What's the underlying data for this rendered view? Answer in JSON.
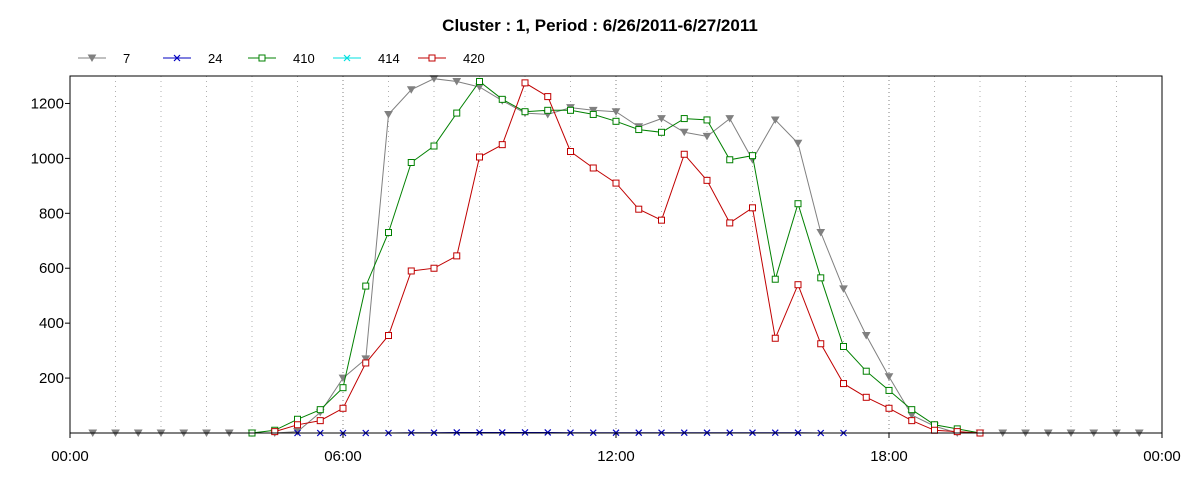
{
  "chart_data": {
    "type": "line",
    "title": "Cluster : 1, Period : 6/26/2011-6/27/2011",
    "xlabel": "",
    "ylabel": "",
    "xlim": [
      "00:00",
      "24:00"
    ],
    "ylim": [
      0,
      1300
    ],
    "x_ticks": [
      "00:00",
      "06:00",
      "12:00",
      "18:00",
      "00:00"
    ],
    "y_ticks": [
      200,
      400,
      600,
      800,
      1000,
      1200
    ],
    "grid": "vertical dotted",
    "legend_position": "top-left",
    "x": [
      "00:30",
      "01:00",
      "01:30",
      "02:00",
      "02:30",
      "03:00",
      "03:30",
      "04:00",
      "04:30",
      "05:00",
      "05:30",
      "06:00",
      "06:30",
      "07:00",
      "07:30",
      "08:00",
      "08:30",
      "09:00",
      "09:30",
      "10:00",
      "10:30",
      "11:00",
      "11:30",
      "12:00",
      "12:30",
      "13:00",
      "13:30",
      "14:00",
      "14:30",
      "15:00",
      "15:30",
      "16:00",
      "16:30",
      "17:00",
      "17:30",
      "18:00",
      "18:30",
      "19:00",
      "19:30",
      "20:00",
      "20:30",
      "21:00",
      "21:30",
      "22:00",
      "22:30",
      "23:00",
      "23:30"
    ],
    "series": [
      {
        "name": "7",
        "color": "#808080",
        "marker": "triangle-down",
        "values": [
          0,
          0,
          0,
          0,
          0,
          0,
          0,
          0,
          0,
          5,
          75,
          200,
          270,
          1160,
          1250,
          1290,
          1280,
          1260,
          1210,
          1165,
          1160,
          1185,
          1175,
          1170,
          1115,
          1145,
          1095,
          1080,
          1145,
          995,
          1140,
          1055,
          730,
          525,
          355,
          205,
          65,
          25,
          0,
          0,
          0,
          0,
          0,
          0,
          0,
          0,
          0
        ]
      },
      {
        "name": "24",
        "color": "#0000c0",
        "marker": "x",
        "values": [
          null,
          null,
          null,
          null,
          null,
          null,
          null,
          null,
          null,
          0,
          0,
          0,
          0,
          0,
          1,
          1,
          2,
          2,
          2,
          2,
          2,
          1,
          1,
          1,
          1,
          1,
          1,
          1,
          1,
          1,
          1,
          1,
          0,
          0,
          null,
          null,
          null,
          null,
          null,
          null,
          null,
          null,
          null,
          null,
          null,
          null,
          null
        ]
      },
      {
        "name": "410",
        "color": "#008000",
        "marker": "square",
        "values": [
          null,
          null,
          null,
          null,
          null,
          null,
          null,
          0,
          10,
          50,
          85,
          165,
          535,
          730,
          985,
          1045,
          1165,
          1280,
          1215,
          1170,
          1175,
          1175,
          1160,
          1135,
          1105,
          1095,
          1145,
          1140,
          995,
          1010,
          560,
          835,
          565,
          315,
          225,
          155,
          85,
          30,
          15,
          0,
          null,
          null,
          null,
          null,
          null,
          null,
          null
        ]
      },
      {
        "name": "414",
        "color": "#00e0e0",
        "marker": "x",
        "values": [
          null,
          null,
          null,
          null,
          null,
          null,
          null,
          null,
          null,
          null,
          null,
          null,
          null,
          null,
          null,
          null,
          null,
          null,
          null,
          null,
          null,
          null,
          null,
          null,
          null,
          null,
          null,
          null,
          null,
          null,
          null,
          null,
          null,
          null,
          null,
          null,
          null,
          null,
          null,
          null,
          null,
          null,
          null,
          null,
          null,
          null,
          null
        ]
      },
      {
        "name": "420",
        "color": "#c00000",
        "marker": "square",
        "values": [
          null,
          null,
          null,
          null,
          null,
          null,
          null,
          null,
          5,
          30,
          45,
          90,
          255,
          355,
          590,
          600,
          645,
          1005,
          1050,
          1275,
          1225,
          1025,
          965,
          910,
          815,
          775,
          1015,
          920,
          765,
          820,
          345,
          540,
          325,
          180,
          130,
          90,
          45,
          10,
          5,
          0,
          null,
          null,
          null,
          null,
          null,
          null,
          null
        ]
      }
    ]
  }
}
